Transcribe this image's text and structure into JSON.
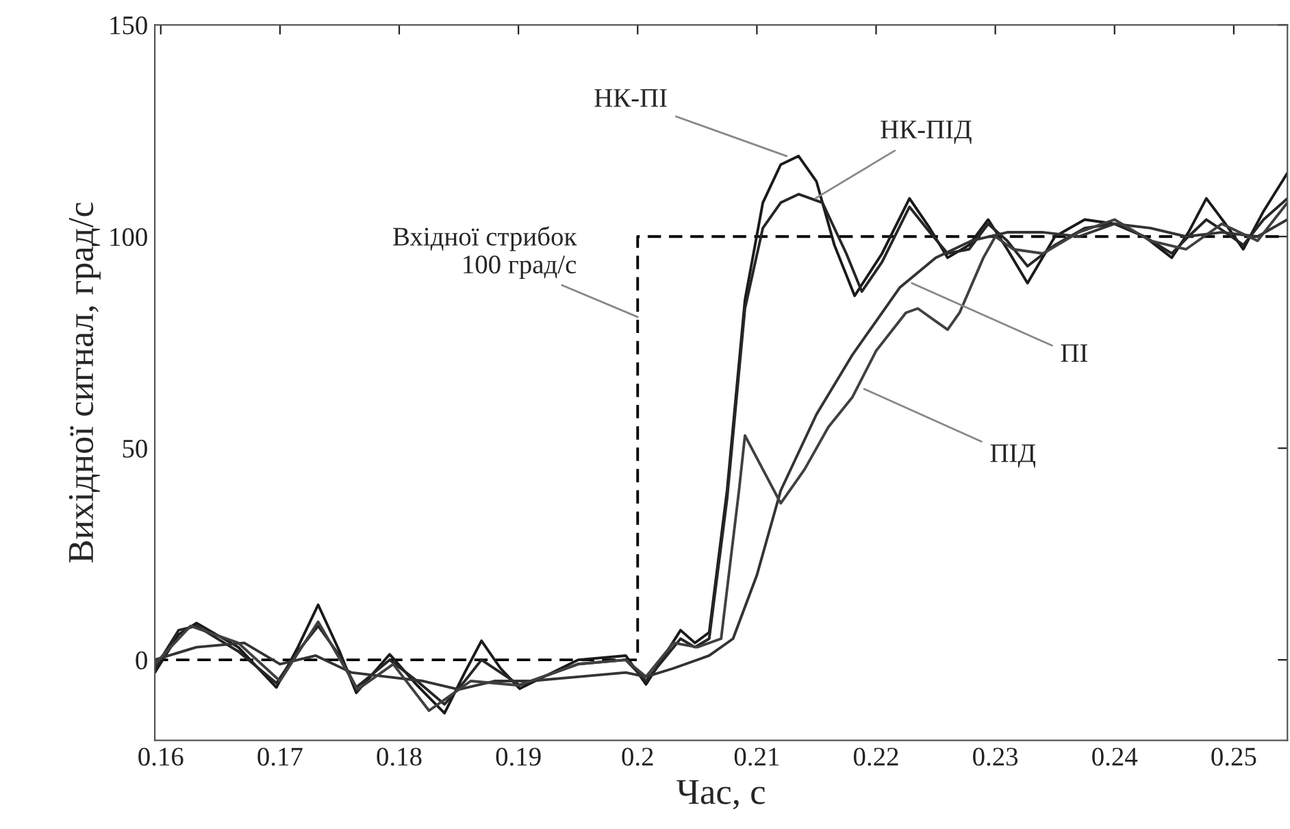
{
  "chart_data": {
    "type": "line",
    "xlabel": "Час, с",
    "ylabel": "Вихідної сигнал, град/с",
    "xlim": [
      0.1595,
      0.2545
    ],
    "ylim": [
      -19,
      150
    ],
    "xticks": [
      0.16,
      0.17,
      0.18,
      0.19,
      0.2,
      0.21,
      0.22,
      0.23,
      0.24,
      0.25
    ],
    "yticks": [
      0,
      50,
      100,
      150
    ],
    "grid": false,
    "legend": false,
    "marker": "none",
    "series": [
      {
        "color": "#000000",
        "line_style": "dashed",
        "x": [
          0.1595,
          0.2,
          0.2,
          0.2545
        ],
        "values": [
          0,
          0,
          100,
          100
        ]
      },
      {
        "color": "#1a1a1a",
        "line_style": "solid",
        "x": [
          0.1595,
          0.1615,
          0.163,
          0.1665,
          0.1697,
          0.1715,
          0.1732,
          0.175,
          0.1764,
          0.1792,
          0.1815,
          0.1838,
          0.1855,
          0.1869,
          0.1885,
          0.1901,
          0.195,
          0.199,
          0.2007,
          0.2036,
          0.2048,
          0.206,
          0.2075,
          0.209,
          0.2105,
          0.212,
          0.2135,
          0.215,
          0.2165,
          0.2182,
          0.2205,
          0.2228,
          0.2245,
          0.226,
          0.2278,
          0.2294,
          0.231,
          0.2327,
          0.235,
          0.2375,
          0.24,
          0.2425,
          0.2448,
          0.2462,
          0.2477,
          0.2493,
          0.2508,
          0.2525,
          0.2545
        ],
        "values": [
          -3,
          6,
          8.7,
          3,
          -6.5,
          3,
          13,
          2,
          -7.8,
          1.3,
          -6,
          -12.6,
          -3,
          4.5,
          -2,
          -6.8,
          0,
          1,
          -5.8,
          7,
          4,
          6.5,
          40,
          85,
          108,
          117,
          119,
          113,
          98,
          86,
          96,
          109,
          102,
          95,
          98,
          104,
          97,
          89,
          100,
          104,
          103,
          100,
          95,
          101,
          109,
          103,
          97,
          106,
          115
        ]
      },
      {
        "color": "#262626",
        "line_style": "solid",
        "x": [
          0.1595,
          0.1615,
          0.163,
          0.1665,
          0.1697,
          0.1715,
          0.1732,
          0.175,
          0.1764,
          0.1792,
          0.1815,
          0.1838,
          0.1855,
          0.1869,
          0.1885,
          0.1901,
          0.195,
          0.199,
          0.2007,
          0.2036,
          0.2048,
          0.206,
          0.2075,
          0.209,
          0.2105,
          0.212,
          0.2135,
          0.2155,
          0.2175,
          0.2188,
          0.2205,
          0.2228,
          0.2245,
          0.226,
          0.2278,
          0.2294,
          0.231,
          0.2327,
          0.235,
          0.2375,
          0.24,
          0.2425,
          0.2448,
          0.2462,
          0.2477,
          0.2493,
          0.2508,
          0.2525,
          0.2545
        ],
        "values": [
          -2,
          7,
          8,
          2,
          -5.5,
          2,
          8,
          1,
          -6.5,
          0,
          -5,
          -10.5,
          -5,
          0,
          -3,
          -6,
          -1,
          0,
          -5,
          5,
          3,
          5,
          38,
          83,
          102,
          108,
          110,
          108,
          96,
          87,
          94,
          107,
          101,
          96,
          97,
          103,
          99,
          93,
          98,
          102,
          103,
          100,
          96,
          100,
          104,
          101,
          98,
          104,
          109
        ]
      },
      {
        "color": "#333333",
        "line_style": "solid",
        "x": [
          0.1595,
          0.163,
          0.167,
          0.17,
          0.173,
          0.176,
          0.179,
          0.182,
          0.185,
          0.188,
          0.191,
          0.195,
          0.199,
          0.2007,
          0.203,
          0.206,
          0.208,
          0.21,
          0.212,
          0.215,
          0.218,
          0.22,
          0.222,
          0.225,
          0.228,
          0.231,
          0.234,
          0.237,
          0.24,
          0.243,
          0.246,
          0.249,
          0.252,
          0.2545
        ],
        "values": [
          0,
          3,
          4,
          -1,
          1,
          -3,
          -4,
          -5,
          -7,
          -5,
          -5,
          -4,
          -3,
          -4,
          -2,
          1,
          5,
          20,
          40,
          58,
          72,
          80,
          88,
          95,
          99,
          101,
          101,
          100,
          103,
          102,
          100,
          101,
          100,
          104
        ]
      },
      {
        "color": "#404040",
        "line_style": "solid",
        "x": [
          0.1595,
          0.1625,
          0.1665,
          0.17,
          0.1732,
          0.1765,
          0.1795,
          0.1825,
          0.186,
          0.19,
          0.195,
          0.199,
          0.2007,
          0.203,
          0.205,
          0.207,
          0.2085,
          0.209,
          0.2105,
          0.212,
          0.214,
          0.216,
          0.218,
          0.22,
          0.2225,
          0.2235,
          0.225,
          0.226,
          0.227,
          0.229,
          0.23,
          0.2315,
          0.234,
          0.237,
          0.24,
          0.243,
          0.246,
          0.249,
          0.252,
          0.2545
        ],
        "values": [
          -1,
          8,
          4,
          -5,
          9,
          -7,
          -1,
          -12,
          -5,
          -6,
          -1,
          0,
          -4,
          4,
          3,
          5,
          40,
          53,
          45,
          37,
          45,
          55,
          62,
          73,
          82,
          83,
          80,
          78,
          82,
          95,
          100,
          97,
          96,
          101,
          104,
          99,
          97,
          103,
          99,
          108
        ]
      }
    ],
    "annotations": [
      {
        "text": "Вхідної стрибок\n100 град/с",
        "x": 0.2,
        "y": 81
      },
      {
        "text": "НК-ПІ",
        "x": 0.2125,
        "y": 119
      },
      {
        "text": "НК-ПІД",
        "x": 0.2149,
        "y": 109
      },
      {
        "text": "ПІ",
        "x": 0.223,
        "y": 89
      },
      {
        "text": "ПІД",
        "x": 0.219,
        "y": 64
      }
    ]
  }
}
